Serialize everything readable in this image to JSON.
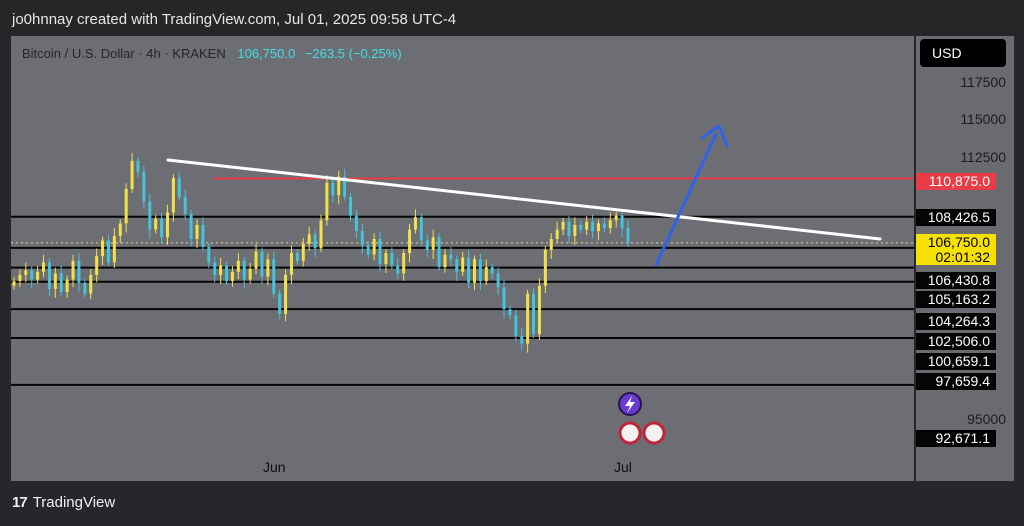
{
  "header": {
    "credit": "jo0hnnay created with TradingView.com, Jul 01, 2025 09:58 UTC-4"
  },
  "symbol": {
    "name": "Bitcoin / U.S. Dollar · 4h · KRAKEN",
    "price": "106,750.0",
    "change": "−263.5 (−0.25%)"
  },
  "axis": {
    "currency": "USD"
  },
  "footer": {
    "logo_mark": "17",
    "brand": "TradingView"
  },
  "colors": {
    "resistance": "#e83c46",
    "trendline": "#ffffff",
    "arrow": "#2f62e8",
    "up_candle": "#f2e24a",
    "down_candle": "#45c3d8"
  },
  "chart_data": {
    "type": "candlestick",
    "title": "Bitcoin / U.S. Dollar · 4h · KRAKEN",
    "ylim": [
      91500,
      120000
    ],
    "y_ticks": [
      117500,
      115000,
      112500,
      95000
    ],
    "x_ticks": [
      "Jun",
      "Jul"
    ],
    "price_levels": [
      {
        "value": 110875.0,
        "label": "110,875.0",
        "kind": "resistance"
      },
      {
        "value": 108426.5,
        "label": "108,426.5",
        "kind": "level"
      },
      {
        "value": 106750.0,
        "label": "106,750.0",
        "sublabel": "02:01:32",
        "kind": "current"
      },
      {
        "value": 106430.8,
        "label": "106,430.8",
        "kind": "level"
      },
      {
        "value": 105163.2,
        "label": "105,163.2",
        "kind": "level"
      },
      {
        "value": 104264.3,
        "label": "104,264.3",
        "kind": "level"
      },
      {
        "value": 102506.0,
        "label": "102,506.0",
        "kind": "level"
      },
      {
        "value": 100659.1,
        "label": "100,659.1",
        "kind": "level"
      },
      {
        "value": 97659.4,
        "label": "97,659.4",
        "kind": "level"
      },
      {
        "value": 92671.1,
        "label": "92,671.1",
        "kind": "level"
      }
    ],
    "close_path": [
      104300,
      104700,
      105000,
      104400,
      104900,
      105500,
      103800,
      104800,
      103600,
      104400,
      105600,
      104200,
      103500,
      104700,
      105900,
      106900,
      105500,
      107200,
      108000,
      110200,
      112000,
      111300,
      109400,
      107600,
      108300,
      107100,
      108700,
      110900,
      109700,
      108600,
      107000,
      107900,
      106500,
      105500,
      104700,
      105300,
      104300,
      104900,
      105600,
      104400,
      105100,
      106200,
      104600,
      105700,
      103500,
      102200,
      104700,
      106100,
      105600,
      106700,
      107300,
      106400,
      108200,
      110600,
      109800,
      111000,
      109700,
      108500,
      107500,
      106600,
      106000,
      107000,
      105400,
      106100,
      105300,
      104800,
      106100,
      107600,
      108400,
      106900,
      106300,
      107100,
      105200,
      106000,
      105700,
      104900,
      105800,
      104200,
      105700,
      104300,
      105200,
      104800,
      103900,
      102500,
      102100,
      100800,
      100300,
      103500,
      100900,
      104000,
      106300,
      107000,
      107600,
      108100,
      107200,
      107900,
      107600,
      108100,
      107500,
      108000,
      107700,
      108200,
      108500,
      107700,
      106750
    ]
  }
}
